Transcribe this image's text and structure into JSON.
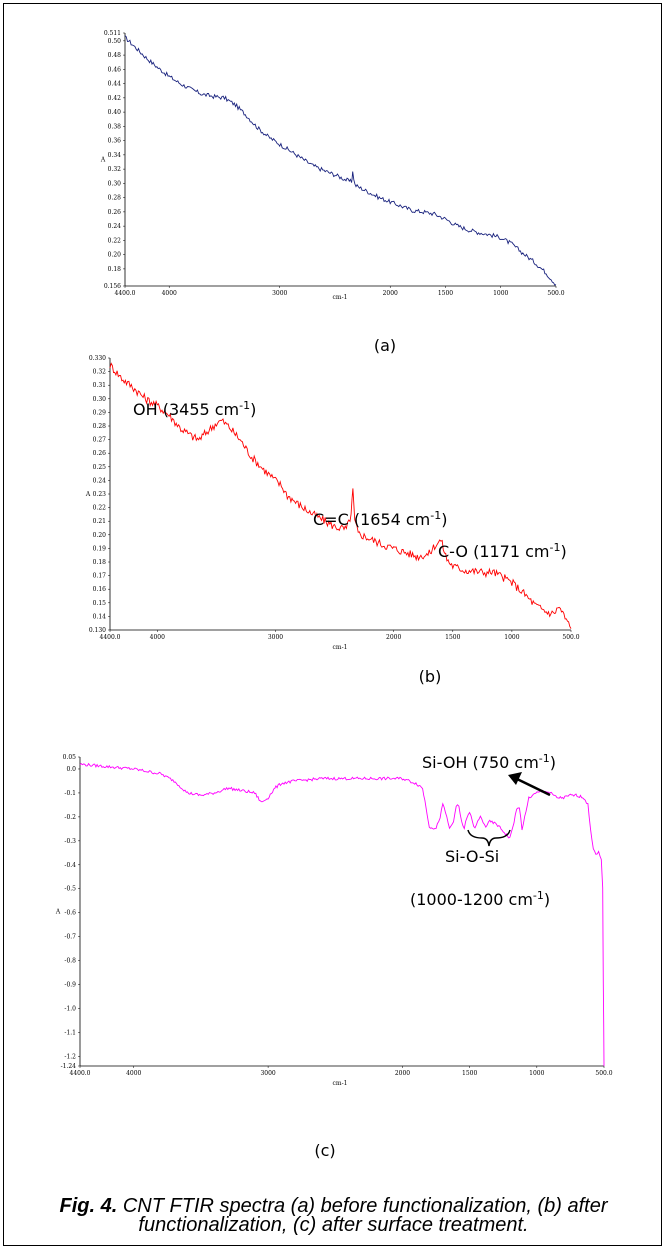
{
  "chart_data": [
    {
      "type": "line",
      "panel_label": "(a)",
      "xlabel": "cm-1",
      "ylabel": "A",
      "xlim": [
        4400,
        500
      ],
      "ylim": [
        0.156,
        0.511
      ],
      "x_ticks": [
        "4400.0",
        "4000",
        "3000",
        "2000",
        "1500",
        "1000",
        "500.0"
      ],
      "x_tick_values": [
        4400,
        4000,
        3000,
        2000,
        1500,
        1000,
        500
      ],
      "y_ticks": [
        "0.511",
        "0.50",
        "0.48",
        "0.46",
        "0.44",
        "0.42",
        "0.40",
        "0.38",
        "0.36",
        "0.34",
        "0.32",
        "0.30",
        "0.28",
        "0.26",
        "0.24",
        "0.22",
        "0.20",
        "0.18",
        "0.156"
      ],
      "y_tick_values": [
        0.511,
        0.5,
        0.48,
        0.46,
        0.44,
        0.42,
        0.4,
        0.38,
        0.36,
        0.34,
        0.32,
        0.3,
        0.28,
        0.26,
        0.24,
        0.22,
        0.2,
        0.18,
        0.156
      ],
      "color": "#1a237e",
      "noise": 0.003,
      "series": [
        {
          "x": [
            4400,
            4300,
            4200,
            4100,
            4000,
            3900,
            3800,
            3700,
            3600,
            3500,
            3400,
            3300,
            3200,
            3100,
            3000,
            2900,
            2800,
            2700,
            2600,
            2500,
            2400,
            2350,
            2340,
            2320,
            2300,
            2200,
            2100,
            2000,
            1900,
            1800,
            1700,
            1600,
            1500,
            1400,
            1300,
            1200,
            1100,
            1000,
            900,
            800,
            700,
            600,
            500
          ],
          "y": [
            0.505,
            0.49,
            0.475,
            0.462,
            0.45,
            0.44,
            0.432,
            0.425,
            0.422,
            0.42,
            0.41,
            0.395,
            0.378,
            0.365,
            0.355,
            0.345,
            0.335,
            0.325,
            0.318,
            0.312,
            0.305,
            0.302,
            0.316,
            0.298,
            0.296,
            0.288,
            0.28,
            0.274,
            0.268,
            0.262,
            0.26,
            0.257,
            0.25,
            0.241,
            0.235,
            0.231,
            0.228,
            0.224,
            0.215,
            0.202,
            0.19,
            0.176,
            0.158
          ]
        }
      ]
    },
    {
      "type": "line",
      "panel_label": "(b)",
      "xlabel": "cm-1",
      "ylabel": "A",
      "xlim": [
        4400,
        500
      ],
      "ylim": [
        0.13,
        0.33
      ],
      "x_ticks": [
        "4400.0",
        "4000",
        "3000",
        "2000",
        "1500",
        "1000",
        "500.0"
      ],
      "x_tick_values": [
        4400,
        4000,
        3000,
        2000,
        1500,
        1000,
        500
      ],
      "y_ticks": [
        "0.330",
        "0.32",
        "0.31",
        "0.30",
        "0.29",
        "0.28",
        "0.27",
        "0.26",
        "0.25",
        "0.24",
        "0.23",
        "0.22",
        "0.21",
        "0.20",
        "0.19",
        "0.18",
        "0.17",
        "0.16",
        "0.15",
        "0.14",
        "0.130"
      ],
      "y_tick_values": [
        0.33,
        0.32,
        0.31,
        0.3,
        0.29,
        0.28,
        0.27,
        0.26,
        0.25,
        0.24,
        0.23,
        0.22,
        0.21,
        0.2,
        0.19,
        0.18,
        0.17,
        0.16,
        0.15,
        0.14,
        0.13
      ],
      "color": "#ff0000",
      "noise": 0.003,
      "annotations": [
        {
          "text": "OH (3455 cm",
          "sup": "-1",
          "end": ")"
        },
        {
          "text": "C=C (1654 cm",
          "sup": "-1",
          "end": ")"
        },
        {
          "text": "C-O (1171 cm",
          "sup": "-1",
          "end": ")"
        }
      ],
      "series": [
        {
          "x": [
            4400,
            4300,
            4200,
            4100,
            4000,
            3900,
            3800,
            3700,
            3650,
            3600,
            3500,
            3455,
            3400,
            3300,
            3200,
            3100,
            3000,
            2950,
            2900,
            2800,
            2700,
            2600,
            2500,
            2400,
            2360,
            2345,
            2330,
            2300,
            2200,
            2100,
            2000,
            1900,
            1800,
            1700,
            1654,
            1600,
            1550,
            1500,
            1400,
            1300,
            1200,
            1171,
            1100,
            1000,
            900,
            800,
            700,
            650,
            600,
            550,
            500
          ],
          "y": [
            0.325,
            0.315,
            0.308,
            0.3,
            0.295,
            0.288,
            0.278,
            0.272,
            0.27,
            0.274,
            0.282,
            0.284,
            0.28,
            0.27,
            0.257,
            0.248,
            0.24,
            0.236,
            0.229,
            0.222,
            0.216,
            0.211,
            0.206,
            0.204,
            0.215,
            0.233,
            0.21,
            0.201,
            0.197,
            0.193,
            0.19,
            0.187,
            0.184,
            0.186,
            0.192,
            0.196,
            0.182,
            0.177,
            0.174,
            0.173,
            0.172,
            0.173,
            0.17,
            0.165,
            0.157,
            0.148,
            0.143,
            0.142,
            0.147,
            0.139,
            0.131
          ]
        }
      ]
    },
    {
      "type": "line",
      "panel_label": "(c)",
      "xlabel": "cm-1",
      "ylabel": "A",
      "xlim": [
        4400,
        500
      ],
      "ylim": [
        -1.24,
        0.05
      ],
      "x_ticks": [
        "4400.0",
        "4000",
        "3000",
        "2000",
        "1500",
        "1000",
        "500.0"
      ],
      "x_tick_values": [
        4400,
        4000,
        3000,
        2000,
        1500,
        1000,
        500
      ],
      "y_ticks": [
        "0.05",
        "0.0",
        "-0.1",
        "-0.2",
        "-0.3",
        "-0.4",
        "-0.5",
        "-0.6",
        "-0.7",
        "-0.8",
        "-0.9",
        "-1.0",
        "-1.1",
        "-1.2",
        "-1.24"
      ],
      "y_tick_values": [
        0.05,
        0.0,
        -0.1,
        -0.2,
        -0.3,
        -0.4,
        -0.5,
        -0.6,
        -0.7,
        -0.8,
        -0.9,
        -1.0,
        -1.1,
        -1.2,
        -1.24
      ],
      "color": "#ff00ff",
      "noise": 0.006,
      "annotations": [
        {
          "text": "Si-OH (750 cm",
          "sup": "-1",
          "end": ")"
        },
        {
          "text": "Si-O-Si",
          "sup": "",
          "end": ""
        },
        {
          "text": "(1000-1200 cm",
          "sup": "-1",
          "end": ")"
        }
      ],
      "series": [
        {
          "x": [
            4400,
            4200,
            4000,
            3800,
            3700,
            3600,
            3500,
            3400,
            3300,
            3200,
            3100,
            3050,
            3000,
            2950,
            2900,
            2800,
            2600,
            2400,
            2200,
            2000,
            1900,
            1850,
            1800,
            1750,
            1720,
            1700,
            1680,
            1650,
            1620,
            1600,
            1580,
            1560,
            1540,
            1520,
            1500,
            1480,
            1460,
            1440,
            1420,
            1400,
            1380,
            1350,
            1300,
            1250,
            1200,
            1170,
            1150,
            1130,
            1110,
            1080,
            1060,
            1000,
            950,
            900,
            850,
            800,
            750,
            700,
            650,
            620,
            600,
            580,
            560,
            540,
            520,
            510,
            505,
            500
          ],
          "y": [
            0.02,
            0.01,
            0.0,
            -0.02,
            -0.05,
            -0.1,
            -0.11,
            -0.1,
            -0.08,
            -0.09,
            -0.1,
            -0.14,
            -0.12,
            -0.08,
            -0.06,
            -0.05,
            -0.04,
            -0.04,
            -0.04,
            -0.04,
            -0.06,
            -0.08,
            -0.24,
            -0.25,
            -0.2,
            -0.15,
            -0.18,
            -0.25,
            -0.22,
            -0.15,
            -0.16,
            -0.22,
            -0.25,
            -0.2,
            -0.18,
            -0.22,
            -0.25,
            -0.22,
            -0.2,
            -0.22,
            -0.24,
            -0.22,
            -0.23,
            -0.26,
            -0.29,
            -0.22,
            -0.17,
            -0.16,
            -0.25,
            -0.18,
            -0.12,
            -0.1,
            -0.09,
            -0.1,
            -0.12,
            -0.12,
            -0.11,
            -0.11,
            -0.12,
            -0.15,
            -0.25,
            -0.33,
            -0.36,
            -0.35,
            -0.38,
            -0.5,
            -0.9,
            -1.24
          ]
        }
      ]
    }
  ],
  "caption": {
    "label": "Fig. 4.",
    "text": "CNT FTIR spectra (a) before functionalization, (b) after functionalization, (c) after surface treatment."
  }
}
